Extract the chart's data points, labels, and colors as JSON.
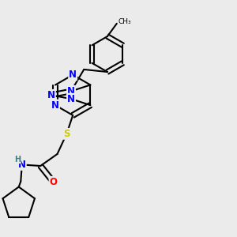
{
  "bg_color": "#ebebeb",
  "atom_colors": {
    "N": "#0000ff",
    "O": "#ff0000",
    "S": "#cccc00",
    "H": "#408080",
    "C": "#000000"
  },
  "bond_color": "#000000",
  "bond_width": 1.5,
  "font_size_atom": 8.5
}
